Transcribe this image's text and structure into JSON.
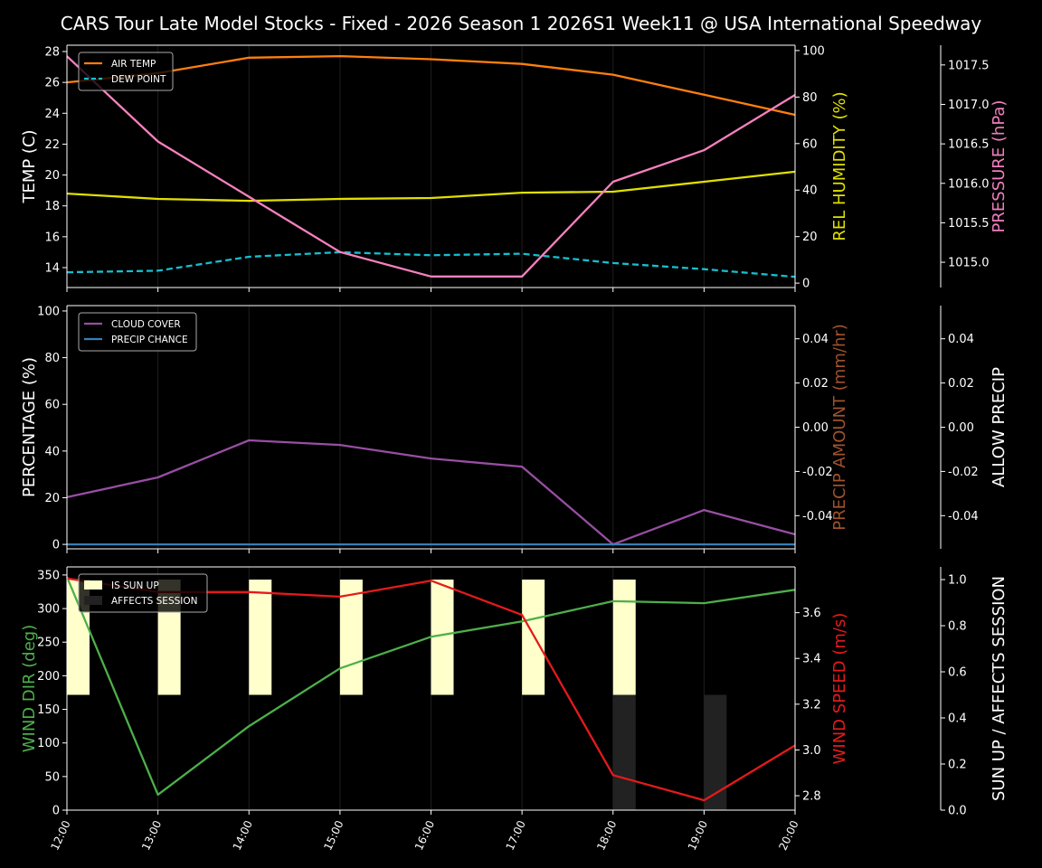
{
  "title": "CARS Tour Late Model Stocks - Fixed - 2026 Season 1 2026S1 Week11 @ USA International Speedway",
  "chart_data": [
    {
      "type": "line",
      "x": [
        "12:00",
        "13:00",
        "14:00",
        "15:00",
        "16:00",
        "17:00",
        "18:00",
        "19:00",
        "20:00"
      ],
      "grid": "vertical",
      "axes": [
        {
          "id": "temp",
          "label": "TEMP (C)",
          "color": "#ffffff",
          "ylim": [
            12.71,
            28.41
          ],
          "ticks": [
            14,
            16,
            18,
            20,
            22,
            24,
            26,
            28
          ],
          "side": "left"
        },
        {
          "id": "hum",
          "label": "REL HUMIDITY (%)",
          "color": "#e0e000",
          "ylim": [
            -1.9,
            102.3
          ],
          "ticks": [
            0,
            20,
            40,
            60,
            80,
            100
          ],
          "side": "right"
        },
        {
          "id": "pres",
          "label": "PRESSURE (hPa)",
          "color": "#f07fbf",
          "ylim": [
            1014.68,
            1017.75
          ],
          "ticks": [
            1015.0,
            1015.5,
            1016.0,
            1016.5,
            1017.0,
            1017.5
          ],
          "tick_format": "1dp",
          "side": "far-right"
        }
      ],
      "series": [
        {
          "name": "AIR TEMP",
          "axis": "temp",
          "color": "#ff7f0e",
          "style": "solid",
          "values": [
            26.0,
            26.6,
            27.6,
            27.7,
            27.5,
            27.2,
            26.5,
            25.2,
            23.9
          ]
        },
        {
          "name": "DEW POINT",
          "axis": "temp",
          "color": "#17becf",
          "style": "dashed",
          "values": [
            13.7,
            13.8,
            14.7,
            15.0,
            14.8,
            14.9,
            14.3,
            13.9,
            13.4
          ]
        },
        {
          "axis": "hum",
          "color": "#e0e000",
          "style": "solid",
          "values": [
            38.5,
            36.2,
            35.4,
            36.2,
            36.6,
            38.9,
            39.3,
            43.6,
            47.9
          ]
        },
        {
          "axis": "pres",
          "color": "#f781bf",
          "style": "solid",
          "values": [
            1017.61,
            1016.53,
            1015.83,
            1015.13,
            1014.82,
            1014.82,
            1016.02,
            1016.42,
            1017.12
          ]
        }
      ],
      "legend": {
        "placement": "top-left",
        "entries": [
          "AIR TEMP",
          "DEW POINT"
        ]
      }
    },
    {
      "type": "line",
      "x": [
        "12:00",
        "13:00",
        "14:00",
        "15:00",
        "16:00",
        "17:00",
        "18:00",
        "19:00",
        "20:00"
      ],
      "grid": "vertical",
      "axes": [
        {
          "id": "pct",
          "label": "PERCENTAGE (%)",
          "color": "#ffffff",
          "ylim": [
            -1.9,
            102.3
          ],
          "ticks": [
            0,
            20,
            40,
            60,
            80,
            100
          ],
          "side": "left"
        },
        {
          "id": "amt",
          "label": "PRECIP AMOUNT (mm/hr)",
          "color": "#a0522d",
          "ylim": [
            -0.055,
            0.055
          ],
          "ticks": [
            -0.04,
            -0.02,
            0.0,
            0.02,
            0.04
          ],
          "tick_format": "2dp",
          "side": "right"
        },
        {
          "id": "allow",
          "label": "ALLOW PRECIP",
          "color": "#ffffff",
          "ylim": [
            -0.055,
            0.055
          ],
          "ticks": [
            -0.04,
            -0.02,
            0.0,
            0.02,
            0.04
          ],
          "tick_format": "2dp",
          "side": "far-right"
        }
      ],
      "series": [
        {
          "name": "CLOUD COVER",
          "axis": "pct",
          "color": "#984ea3",
          "style": "solid",
          "values": [
            20.2,
            28.7,
            44.6,
            42.6,
            36.8,
            33.3,
            0,
            14.7,
            4.3
          ]
        },
        {
          "name": "PRECIP CHANCE",
          "axis": "pct",
          "color": "#377eb8",
          "style": "solid",
          "values": [
            0,
            0,
            0,
            0,
            0,
            0,
            0,
            0,
            0
          ]
        }
      ],
      "legend": {
        "placement": "top-left",
        "entries": [
          "CLOUD COVER",
          "PRECIP CHANCE"
        ]
      }
    },
    {
      "type": "line",
      "x": [
        "12:00",
        "13:00",
        "14:00",
        "15:00",
        "16:00",
        "17:00",
        "18:00",
        "19:00",
        "20:00"
      ],
      "grid": "vertical",
      "axes": [
        {
          "id": "dir",
          "label": "WIND DIR (deg)",
          "color": "#4daf4a",
          "ylim": [
            0,
            362
          ],
          "ticks": [
            0,
            50,
            100,
            150,
            200,
            250,
            300,
            350
          ],
          "side": "left"
        },
        {
          "id": "spd",
          "label": "WIND SPEED (m/s)",
          "color": "#e41a1c",
          "ylim": [
            2.737,
            3.8
          ],
          "ticks": [
            2.8,
            3.0,
            3.2,
            3.4,
            3.6
          ],
          "tick_format": "1dp",
          "side": "right"
        },
        {
          "id": "sun",
          "label": "SUN UP / AFFECTS SESSION",
          "color": "#ffffff",
          "ylim": [
            0,
            1.055
          ],
          "ticks": [
            0.0,
            0.2,
            0.4,
            0.6,
            0.8,
            1.0
          ],
          "tick_format": "1dp",
          "side": "far-right"
        }
      ],
      "bars": [
        {
          "name": "IS SUN UP",
          "axis": "sun",
          "color": "#ffffcc",
          "base": 0.5,
          "values": [
            1,
            1,
            1,
            1,
            1,
            1,
            1,
            0,
            0
          ]
        },
        {
          "name": "AFFECTS SESSION",
          "axis": "sun",
          "color": "#222222",
          "base": 0,
          "values": [
            0,
            0,
            0,
            0,
            0,
            0,
            1,
            1,
            0
          ]
        }
      ],
      "series": [
        {
          "axis": "dir",
          "color": "#4daf4a",
          "style": "solid",
          "values": [
            347,
            23,
            125,
            211,
            258,
            281,
            311,
            308,
            328
          ]
        },
        {
          "axis": "spd",
          "color": "#e41a1c",
          "style": "solid",
          "values": [
            3.75,
            3.69,
            3.69,
            3.67,
            3.74,
            3.59,
            2.89,
            2.78,
            3.02
          ]
        }
      ],
      "legend": {
        "placement": "top-left",
        "entries": [
          "IS SUN UP",
          "AFFECTS SESSION"
        ]
      }
    }
  ]
}
